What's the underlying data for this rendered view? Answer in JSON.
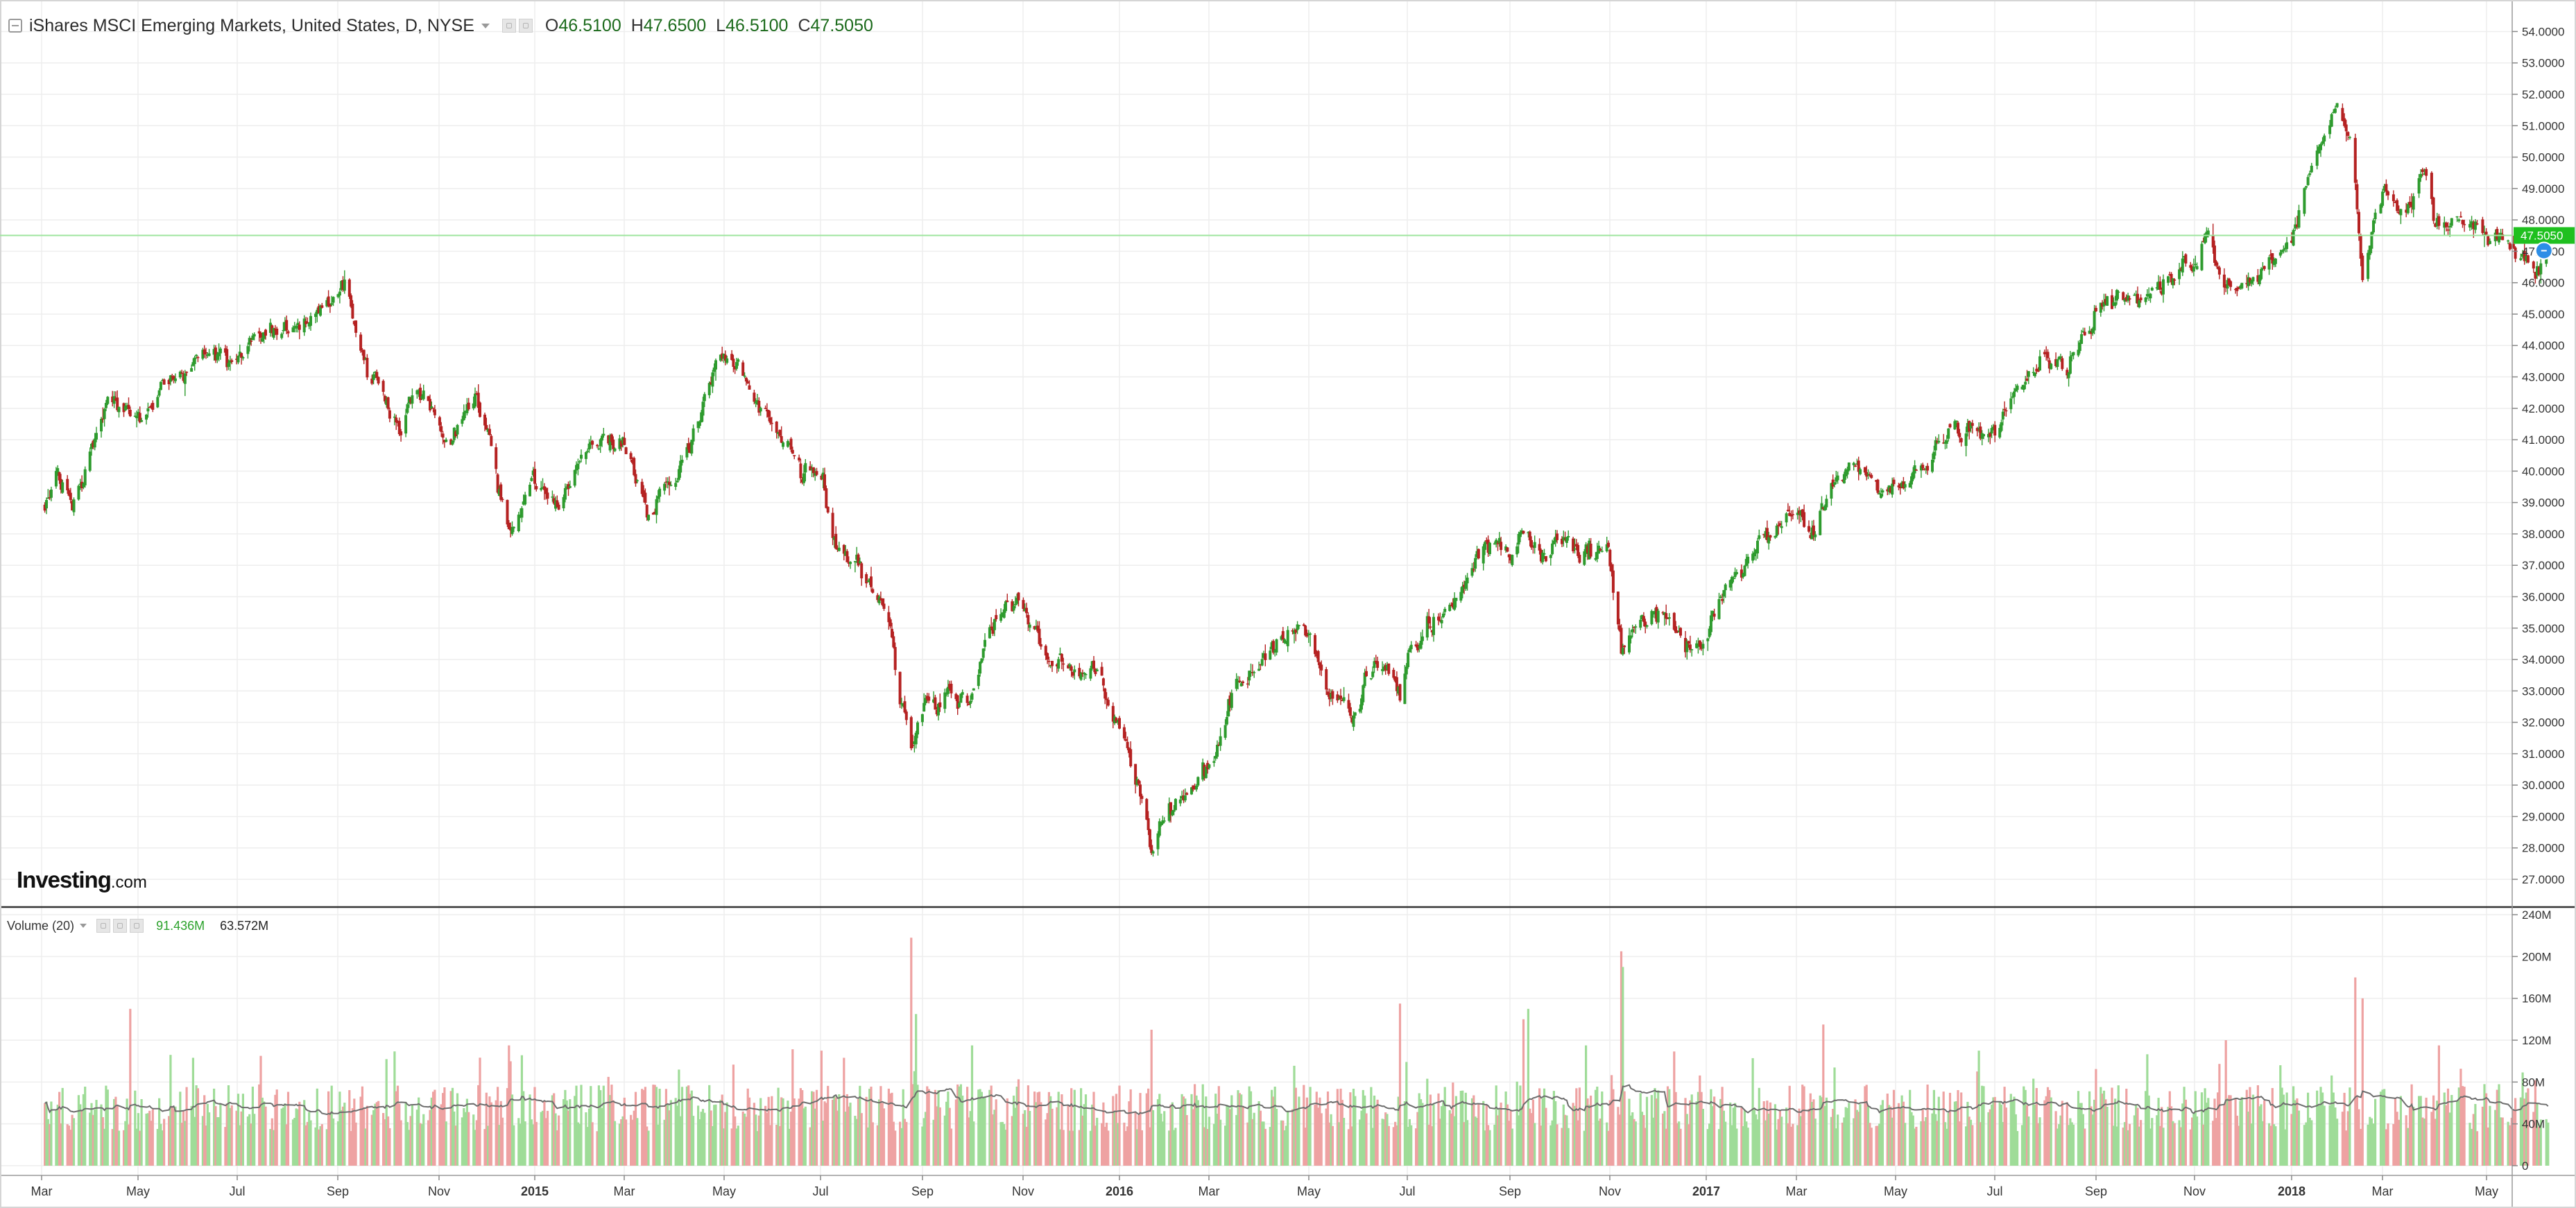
{
  "header": {
    "title": "iShares MSCI Emerging Markets, United States, D, NYSE",
    "open_label": "O",
    "open": "46.5100",
    "high_label": "H",
    "high": "47.6500",
    "low_label": "L",
    "low": "46.5100",
    "close_label": "C",
    "close": "47.5050"
  },
  "volume_header": {
    "label": "Volume (20)",
    "value_volume": "91.436M",
    "value_ma": "63.572M"
  },
  "logo": {
    "main": "Investing",
    "domain": ".com"
  },
  "colors": {
    "up": "#2e9b2e",
    "down": "#b52222",
    "vol_up": "#9fdc98",
    "vol_down": "#eea2a2",
    "price_line": "#9ee59e",
    "price_tag": "#1fc01f",
    "grid": "#eeeeee"
  },
  "chart_data": [
    {
      "type": "candlestick",
      "title": "iShares MSCI Emerging Markets, United States, D, NYSE",
      "xlabel": "",
      "ylabel": "",
      "grid": true,
      "ylim": [
        26.3,
        54.8
      ],
      "y_ticks": [
        "27.0000",
        "28.0000",
        "29.0000",
        "30.0000",
        "31.0000",
        "32.0000",
        "33.0000",
        "34.0000",
        "35.0000",
        "36.0000",
        "37.0000",
        "38.0000",
        "39.0000",
        "40.0000",
        "41.0000",
        "42.0000",
        "43.0000",
        "44.0000",
        "45.0000",
        "46.0000",
        "47.0000",
        "48.0000",
        "49.0000",
        "50.0000",
        "51.0000",
        "52.0000",
        "53.0000",
        "54.0000"
      ],
      "x_ticks": [
        {
          "label": "Mar",
          "bold": false
        },
        {
          "label": "May",
          "bold": false
        },
        {
          "label": "Jul",
          "bold": false
        },
        {
          "label": "Sep",
          "bold": false
        },
        {
          "label": "Nov",
          "bold": false
        },
        {
          "label": "2015",
          "bold": true
        },
        {
          "label": "Mar",
          "bold": false
        },
        {
          "label": "May",
          "bold": false
        },
        {
          "label": "Jul",
          "bold": false
        },
        {
          "label": "Sep",
          "bold": false
        },
        {
          "label": "Nov",
          "bold": false
        },
        {
          "label": "2016",
          "bold": true
        },
        {
          "label": "Mar",
          "bold": false
        },
        {
          "label": "May",
          "bold": false
        },
        {
          "label": "Jul",
          "bold": false
        },
        {
          "label": "Sep",
          "bold": false
        },
        {
          "label": "Nov",
          "bold": false
        },
        {
          "label": "2017",
          "bold": true
        },
        {
          "label": "Mar",
          "bold": false
        },
        {
          "label": "May",
          "bold": false
        },
        {
          "label": "Jul",
          "bold": false
        },
        {
          "label": "Sep",
          "bold": false
        },
        {
          "label": "Nov",
          "bold": false
        },
        {
          "label": "2018",
          "bold": true
        },
        {
          "label": "Mar",
          "bold": false
        },
        {
          "label": "May",
          "bold": false
        }
      ],
      "last_price": 47.505,
      "last_price_label": "47.5050",
      "close_path": [
        [
          "2014-03-01",
          38.7
        ],
        [
          "2014-03-10",
          39.8
        ],
        [
          "2014-03-20",
          38.6
        ],
        [
          "2014-03-31",
          40.3
        ],
        [
          "2014-04-10",
          42.1
        ],
        [
          "2014-04-22",
          41.6
        ],
        [
          "2014-05-01",
          41.3
        ],
        [
          "2014-05-15",
          42.8
        ],
        [
          "2014-05-30",
          43.1
        ],
        [
          "2014-06-15",
          43.9
        ],
        [
          "2014-06-30",
          43.5
        ],
        [
          "2014-07-15",
          44.4
        ],
        [
          "2014-07-31",
          44.6
        ],
        [
          "2014-08-15",
          44.9
        ],
        [
          "2014-08-31",
          45.4
        ],
        [
          "2014-09-05",
          45.8
        ],
        [
          "2014-09-15",
          44.1
        ],
        [
          "2014-09-30",
          42.0
        ],
        [
          "2014-10-10",
          41.3
        ],
        [
          "2014-10-20",
          42.6
        ],
        [
          "2014-10-31",
          41.8
        ],
        [
          "2014-11-10",
          41.2
        ],
        [
          "2014-11-25",
          42.3
        ],
        [
          "2014-12-05",
          40.8
        ],
        [
          "2014-12-16",
          38.1
        ],
        [
          "2014-12-31",
          39.7
        ],
        [
          "2015-01-15",
          39.2
        ],
        [
          "2015-01-31",
          40.4
        ],
        [
          "2015-02-15",
          41.0
        ],
        [
          "2015-02-28",
          40.6
        ],
        [
          "2015-03-12",
          38.8
        ],
        [
          "2015-03-31",
          39.8
        ],
        [
          "2015-04-15",
          42.0
        ],
        [
          "2015-04-28",
          43.9
        ],
        [
          "2015-05-10",
          43.1
        ],
        [
          "2015-05-31",
          41.3
        ],
        [
          "2015-06-15",
          40.4
        ],
        [
          "2015-06-30",
          39.6
        ],
        [
          "2015-07-08",
          37.5
        ],
        [
          "2015-07-20",
          37.0
        ],
        [
          "2015-07-31",
          36.2
        ],
        [
          "2015-08-10",
          35.3
        ],
        [
          "2015-08-24",
          31.0
        ],
        [
          "2015-08-31",
          32.4
        ],
        [
          "2015-09-15",
          33.0
        ],
        [
          "2015-09-30",
          32.6
        ],
        [
          "2015-10-10",
          34.7
        ],
        [
          "2015-10-22",
          35.7
        ],
        [
          "2015-10-31",
          35.5
        ],
        [
          "2015-11-15",
          34.3
        ],
        [
          "2015-11-30",
          33.9
        ],
        [
          "2015-12-15",
          33.6
        ],
        [
          "2015-12-31",
          32.2
        ],
        [
          "2016-01-10",
          30.3
        ],
        [
          "2016-01-21",
          28.2
        ],
        [
          "2016-01-31",
          29.4
        ],
        [
          "2016-02-11",
          29.6
        ],
        [
          "2016-02-29",
          31.1
        ],
        [
          "2016-03-15",
          33.4
        ],
        [
          "2016-03-31",
          34.2
        ],
        [
          "2016-04-15",
          34.8
        ],
        [
          "2016-04-29",
          34.9
        ],
        [
          "2016-05-10",
          33.2
        ],
        [
          "2016-05-24",
          32.4
        ],
        [
          "2016-06-10",
          33.9
        ],
        [
          "2016-06-24",
          32.9
        ],
        [
          "2016-06-30",
          34.3
        ],
        [
          "2016-07-15",
          35.4
        ],
        [
          "2016-07-31",
          36.1
        ],
        [
          "2016-08-15",
          37.6
        ],
        [
          "2016-08-31",
          37.2
        ],
        [
          "2016-09-08",
          38.0
        ],
        [
          "2016-09-20",
          37.3
        ],
        [
          "2016-09-30",
          37.9
        ],
        [
          "2016-10-15",
          37.3
        ],
        [
          "2016-10-31",
          37.6
        ],
        [
          "2016-11-09",
          34.5
        ],
        [
          "2016-11-20",
          35.3
        ],
        [
          "2016-11-30",
          35.6
        ],
        [
          "2016-12-15",
          34.8
        ],
        [
          "2016-12-28",
          34.1
        ],
        [
          "2017-01-10",
          35.9
        ],
        [
          "2017-01-31",
          37.4
        ],
        [
          "2017-02-15",
          38.1
        ],
        [
          "2017-02-28",
          38.7
        ],
        [
          "2017-03-10",
          37.9
        ],
        [
          "2017-03-20",
          39.6
        ],
        [
          "2017-03-31",
          39.8
        ],
        [
          "2017-04-15",
          39.5
        ],
        [
          "2017-04-30",
          39.6
        ],
        [
          "2017-05-15",
          40.1
        ],
        [
          "2017-05-31",
          40.9
        ],
        [
          "2017-06-15",
          41.6
        ],
        [
          "2017-06-30",
          41.2
        ],
        [
          "2017-07-15",
          42.7
        ],
        [
          "2017-07-31",
          43.7
        ],
        [
          "2017-08-15",
          43.2
        ],
        [
          "2017-08-31",
          44.9
        ],
        [
          "2017-09-15",
          45.7
        ],
        [
          "2017-09-30",
          45.6
        ],
        [
          "2017-10-15",
          46.2
        ],
        [
          "2017-10-31",
          46.4
        ],
        [
          "2017-11-08",
          47.6
        ],
        [
          "2017-11-21",
          46.0
        ],
        [
          "2017-11-30",
          45.9
        ],
        [
          "2017-12-15",
          46.2
        ],
        [
          "2017-12-31",
          47.5
        ],
        [
          "2018-01-10",
          49.3
        ],
        [
          "2018-01-26",
          51.8
        ],
        [
          "2018-01-31",
          50.8
        ],
        [
          "2018-02-05",
          48.9
        ],
        [
          "2018-02-09",
          46.3
        ],
        [
          "2018-02-20",
          48.9
        ],
        [
          "2018-03-05",
          48.3
        ],
        [
          "2018-03-13",
          49.9
        ],
        [
          "2018-03-23",
          47.6
        ],
        [
          "2018-04-05",
          48.2
        ],
        [
          "2018-04-20",
          47.4
        ],
        [
          "2018-04-30",
          47.2
        ],
        [
          "2018-05-10",
          46.8
        ],
        [
          "2018-05-17",
          46.5
        ],
        [
          "2018-05-22",
          47.5
        ]
      ]
    },
    {
      "type": "bar",
      "title": "Volume (20)",
      "series": [
        {
          "name": "Volume (20)",
          "kind": "bar"
        },
        {
          "name": "Volume (20)",
          "kind": "moving-average-line"
        }
      ],
      "ylim": [
        0,
        240
      ],
      "y_unit": "M",
      "y_ticks": [
        "0",
        "40M",
        "80M",
        "120M",
        "160M",
        "200M",
        "240M"
      ],
      "average_level": 60,
      "spikes": [
        [
          "2014-04-25",
          150
        ],
        [
          "2014-07-15",
          105
        ],
        [
          "2014-12-16",
          115
        ],
        [
          "2015-06-29",
          110
        ],
        [
          "2015-08-24",
          218
        ],
        [
          "2015-08-27",
          145
        ],
        [
          "2015-10-01",
          115
        ],
        [
          "2016-01-21",
          130
        ],
        [
          "2016-06-24",
          155
        ],
        [
          "2016-09-09",
          140
        ],
        [
          "2016-09-12",
          150
        ],
        [
          "2016-10-18",
          115
        ],
        [
          "2016-11-09",
          205
        ],
        [
          "2016-11-10",
          190
        ],
        [
          "2017-03-15",
          135
        ],
        [
          "2017-06-20",
          110
        ],
        [
          "2017-11-21",
          120
        ],
        [
          "2018-02-05",
          180
        ],
        [
          "2018-02-09",
          160
        ],
        [
          "2018-03-23",
          115
        ]
      ]
    }
  ]
}
